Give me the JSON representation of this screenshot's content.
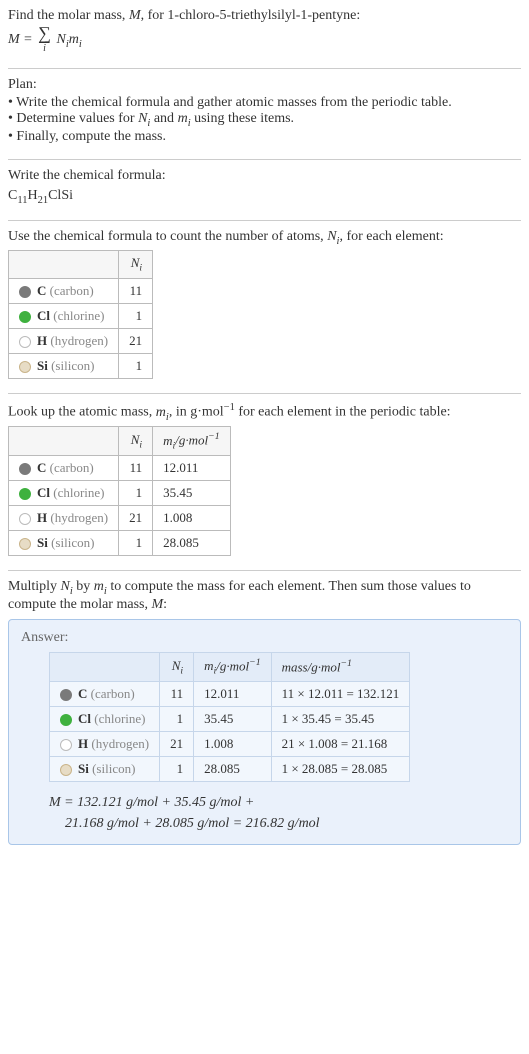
{
  "intro": {
    "line1": "Find the molar mass, M, for 1-chloro-5-triethylsilyl-1-pentyne:",
    "eq_lhs": "M =",
    "eq_rhs": "N_i m_i"
  },
  "plan": {
    "title": "Plan:",
    "items": [
      "• Write the chemical formula and gather atomic masses from the periodic table.",
      "• Determine values for N_i and m_i using these items.",
      "• Finally, compute the mass."
    ]
  },
  "formula_section": {
    "title": "Write the chemical formula:",
    "parts": {
      "a": "C",
      "a_sub": "11",
      "b": "H",
      "b_sub": "21",
      "c": "ClSi"
    }
  },
  "count_section": {
    "title_a": "Use the chemical formula to count the number of atoms, ",
    "title_b": ", for each element:",
    "header_ni": "N_i"
  },
  "lookup_section": {
    "title_a": "Look up the atomic mass, ",
    "title_b": ", in g·mol",
    "title_c": " for each element in the periodic table:",
    "header_mi": "m_i/g·mol⁻¹"
  },
  "multiply_section": {
    "text": "Multiply N_i by m_i to compute the mass for each element. Then sum those values to compute the molar mass, M:"
  },
  "elements": [
    {
      "sym": "C",
      "name": "(carbon)",
      "color": "#7a7a7a",
      "fill": "#7a7a7a",
      "Ni": "11",
      "mi": "12.011",
      "mass": "11 × 12.011 = 132.121"
    },
    {
      "sym": "Cl",
      "name": "(chlorine)",
      "color": "#3fb13f",
      "fill": "#3fb13f",
      "Ni": "1",
      "mi": "35.45",
      "mass": "1 × 35.45 = 35.45"
    },
    {
      "sym": "H",
      "name": "(hydrogen)",
      "color": "#bbbbbb",
      "fill": "#ffffff",
      "Ni": "21",
      "mi": "1.008",
      "mass": "21 × 1.008 = 21.168"
    },
    {
      "sym": "Si",
      "name": "(silicon)",
      "color": "#c9b48a",
      "fill": "#e7dcc5",
      "Ni": "1",
      "mi": "28.085",
      "mass": "1 × 28.085 = 28.085"
    }
  ],
  "answer": {
    "label": "Answer:",
    "header_mass": "mass/g·mol⁻¹",
    "final_line1": "M = 132.121 g/mol + 35.45 g/mol +",
    "final_line2": "21.168 g/mol + 28.085 g/mol = 216.82 g/mol"
  }
}
